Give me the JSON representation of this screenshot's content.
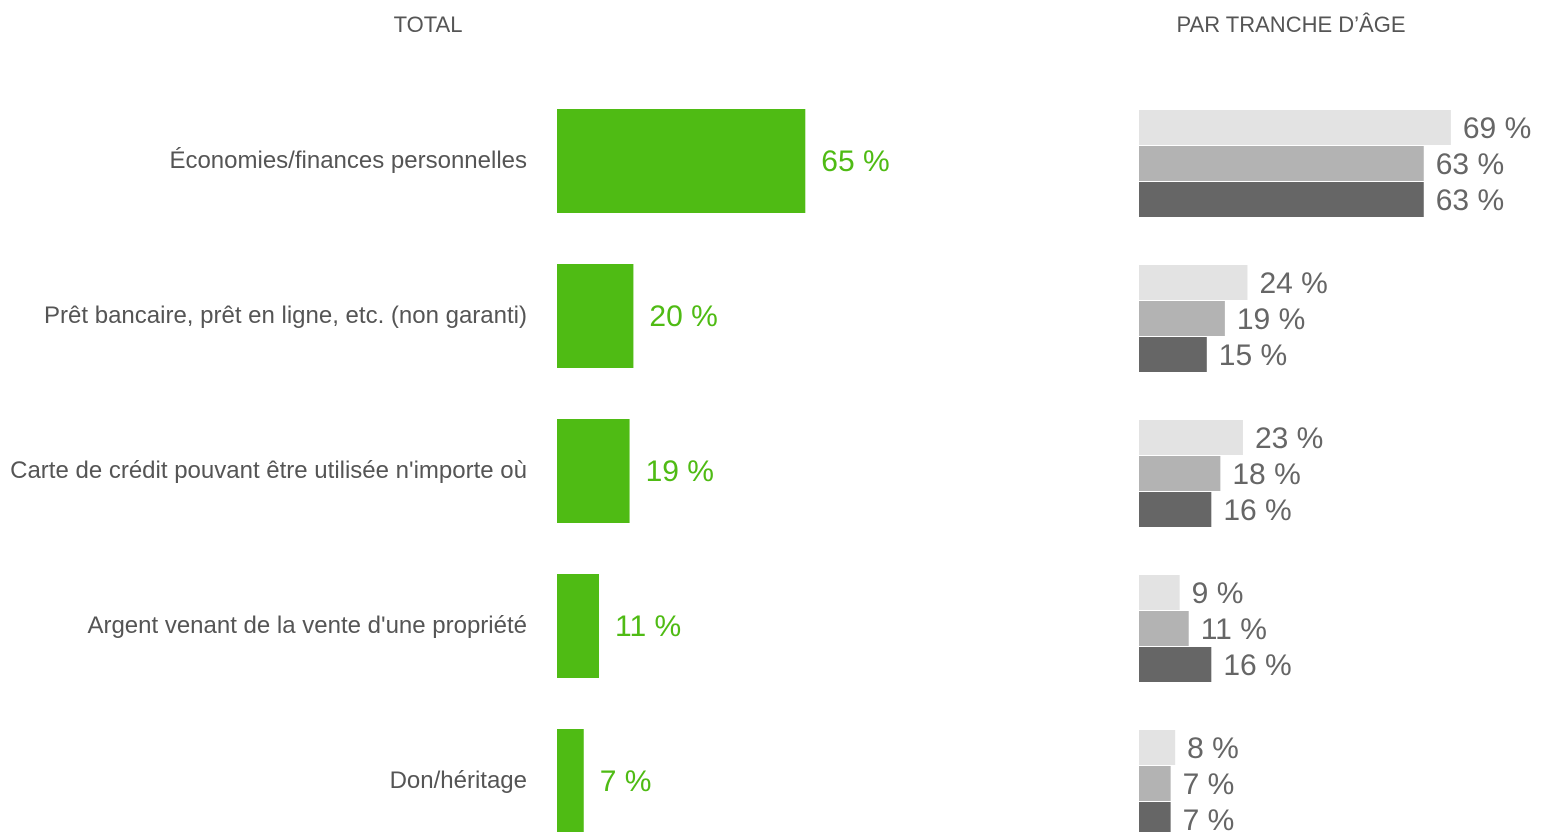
{
  "chart_data": [
    {
      "type": "bar",
      "orientation": "horizontal",
      "title": "TOTAL",
      "categories": [
        "Économies/finances personnelles",
        "Prêt bancaire, prêt en ligne, etc. (non garanti)",
        "Carte de crédit pouvant être utilisée n'importe où",
        "Argent venant de la vente d'une propriété",
        "Don/héritage"
      ],
      "values": [
        65,
        20,
        19,
        11,
        7
      ],
      "value_labels": [
        "65 %",
        "20 %",
        "19 %",
        "11 %",
        "7 %"
      ],
      "color": "#4fbb14"
    },
    {
      "type": "grouped_bar",
      "orientation": "horizontal",
      "title": "PAR TRANCHE D’ÂGE",
      "series": [
        {
          "color": "#e3e3e3",
          "values": [
            69,
            24,
            23,
            9,
            8
          ],
          "value_labels": [
            "69 %",
            "24 %",
            "23 %",
            "9 %",
            "8 %"
          ]
        },
        {
          "color": "#b3b3b3",
          "values": [
            63,
            19,
            18,
            11,
            7
          ],
          "value_labels": [
            "63 %",
            "19 %",
            "18 %",
            "11 %",
            "7 %"
          ]
        },
        {
          "color": "#666666",
          "values": [
            63,
            15,
            16,
            16,
            7
          ],
          "value_labels": [
            "63 %",
            "15 %",
            "16 %",
            "16 %",
            "7 %"
          ]
        }
      ]
    }
  ]
}
